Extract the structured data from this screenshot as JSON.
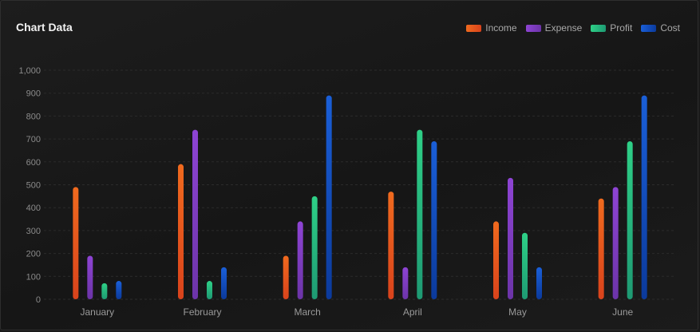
{
  "header": {
    "title": "Chart Data"
  },
  "chart_data": {
    "type": "bar",
    "title": "Chart Data",
    "categories": [
      "January",
      "February",
      "March",
      "April",
      "May",
      "June"
    ],
    "series": [
      {
        "name": "Income",
        "color": "#f06a1e",
        "color_end": "#d9431c",
        "values": [
          490,
          590,
          190,
          470,
          340,
          440
        ]
      },
      {
        "name": "Expense",
        "color": "#8e44d4",
        "color_end": "#6c34a8",
        "values": [
          190,
          740,
          340,
          140,
          530,
          490
        ]
      },
      {
        "name": "Profit",
        "color": "#2ed087",
        "color_end": "#1e9a73",
        "values": [
          70,
          80,
          450,
          740,
          290,
          690
        ]
      },
      {
        "name": "Cost",
        "color": "#1a5fd8",
        "color_end": "#0b3a9c",
        "values": [
          80,
          140,
          890,
          690,
          140,
          890
        ]
      }
    ],
    "ylim": [
      0,
      1000
    ],
    "yticks": [
      "0",
      "100",
      "200",
      "300",
      "400",
      "500",
      "600",
      "700",
      "800",
      "900",
      "1,000"
    ],
    "ytick_values": [
      0,
      100,
      200,
      300,
      400,
      500,
      600,
      700,
      800,
      900,
      1000
    ],
    "grid": true,
    "legend_position": "top-right"
  }
}
